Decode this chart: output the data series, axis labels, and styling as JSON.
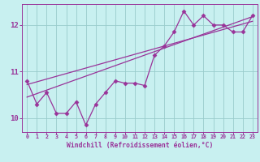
{
  "title": "",
  "xlabel": "Windchill (Refroidissement éolien,°C)",
  "ylabel": "",
  "bg_color": "#c8f0f0",
  "line_color": "#993399",
  "grid_color": "#99cccc",
  "axis_color": "#993399",
  "tick_color": "#993399",
  "xlabel_color": "#993399",
  "xlim": [
    -0.5,
    23.5
  ],
  "ylim": [
    9.7,
    12.45
  ],
  "yticks": [
    10,
    11,
    12
  ],
  "xticks": [
    0,
    1,
    2,
    3,
    4,
    5,
    6,
    7,
    8,
    9,
    10,
    11,
    12,
    13,
    14,
    15,
    16,
    17,
    18,
    19,
    20,
    21,
    22,
    23
  ],
  "line1_x": [
    0,
    1,
    2,
    3,
    4,
    5,
    6,
    7,
    8,
    9,
    10,
    11,
    12,
    13,
    14,
    15,
    16,
    17,
    18,
    19,
    20,
    21,
    22,
    23
  ],
  "line1_y": [
    10.8,
    10.3,
    10.55,
    10.1,
    10.1,
    10.35,
    9.85,
    10.3,
    10.55,
    10.8,
    10.75,
    10.75,
    10.7,
    11.35,
    11.55,
    11.85,
    12.3,
    12.0,
    12.2,
    12.0,
    12.0,
    11.85,
    11.85,
    12.2
  ],
  "line2_x": [
    0,
    23
  ],
  "line2_y": [
    10.45,
    12.18
  ],
  "line3_x": [
    0,
    23
  ],
  "line3_y": [
    10.72,
    12.08
  ],
  "marker": "D",
  "markersize": 2.5,
  "linewidth": 0.9
}
